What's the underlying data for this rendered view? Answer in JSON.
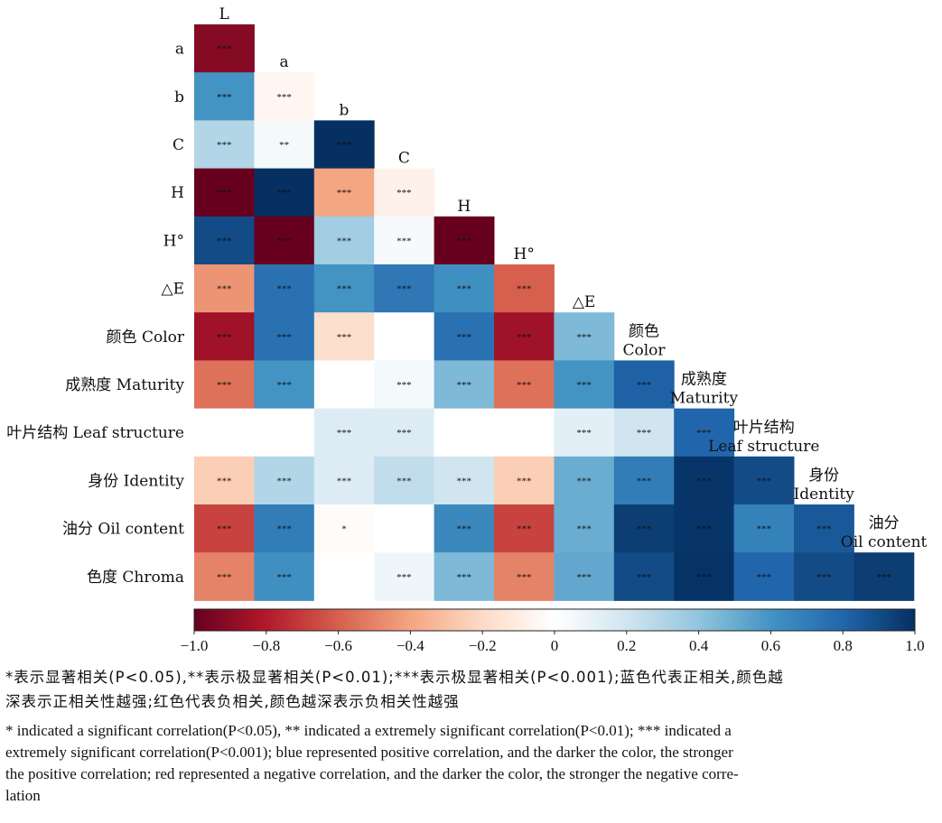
{
  "chart_data": {
    "type": "heatmap",
    "variables": [
      {
        "id": "L",
        "row_label": "",
        "col_label_lines": [
          "L"
        ]
      },
      {
        "id": "a",
        "row_label": "a",
        "col_label_lines": [
          "a"
        ]
      },
      {
        "id": "b",
        "row_label": "b",
        "col_label_lines": [
          "b"
        ]
      },
      {
        "id": "C",
        "row_label": "C",
        "col_label_lines": [
          "C"
        ]
      },
      {
        "id": "H",
        "row_label": "H",
        "col_label_lines": [
          "H"
        ]
      },
      {
        "id": "H0",
        "row_label": "H°",
        "col_label_lines": [
          "H°"
        ]
      },
      {
        "id": "dE",
        "row_label": "△E",
        "col_label_lines": [
          "△E"
        ]
      },
      {
        "id": "color",
        "row_label": "颜色 Color",
        "col_label_lines": [
          "颜色",
          "Color"
        ]
      },
      {
        "id": "maturity",
        "row_label": "成熟度 Maturity",
        "col_label_lines": [
          "成熟度",
          "Maturity"
        ]
      },
      {
        "id": "leaf",
        "row_label": "叶片结构 Leaf structure",
        "col_label_lines": [
          "叶片结构",
          "Leaf structure"
        ]
      },
      {
        "id": "identity",
        "row_label": "身份 Identity",
        "col_label_lines": [
          "身份",
          "Identity"
        ]
      },
      {
        "id": "oil",
        "row_label": "油分 Oil content",
        "col_label_lines": [
          "油分",
          "Oil content"
        ]
      },
      {
        "id": "chroma",
        "row_label": "色度 Chroma",
        "col_label_lines": []
      }
    ],
    "rows": [
      {
        "values": [
          -0.92
        ],
        "sig": [
          "***"
        ]
      },
      {
        "values": [
          0.6,
          -0.05
        ],
        "sig": [
          "***",
          "***"
        ]
      },
      {
        "values": [
          0.3,
          0.05,
          1.0
        ],
        "sig": [
          "***",
          "**",
          "***"
        ]
      },
      {
        "values": [
          -1.0,
          1.0,
          -0.4,
          -0.08
        ],
        "sig": [
          "***",
          "***",
          "***",
          "***"
        ]
      },
      {
        "values": [
          0.9,
          -1.0,
          0.35,
          0.04,
          -1.0
        ],
        "sig": [
          "***",
          "***",
          "***",
          "***",
          "***"
        ]
      },
      {
        "values": [
          -0.45,
          0.75,
          0.6,
          0.72,
          0.62,
          -0.6
        ],
        "sig": [
          "***",
          "***",
          "***",
          "***",
          "***",
          "***"
        ]
      },
      {
        "values": [
          -0.85,
          0.75,
          -0.18,
          0.0,
          0.75,
          -0.85,
          0.45
        ],
        "sig": [
          "***",
          "***",
          "***",
          "",
          "***",
          "***",
          "***"
        ]
      },
      {
        "values": [
          -0.55,
          0.6,
          0.0,
          0.05,
          0.45,
          -0.55,
          0.6,
          0.82
        ],
        "sig": [
          "***",
          "***",
          "",
          "***",
          "***",
          "***",
          "***",
          "***"
        ]
      },
      {
        "values": [
          0.0,
          0.0,
          0.15,
          0.15,
          0.0,
          0.0,
          0.12,
          0.2,
          0.8
        ],
        "sig": [
          "",
          "",
          "***",
          "***",
          "",
          "",
          "***",
          "***",
          "***"
        ]
      },
      {
        "values": [
          -0.25,
          0.3,
          0.15,
          0.25,
          0.2,
          -0.25,
          0.5,
          0.7,
          0.98,
          0.9
        ],
        "sig": [
          "***",
          "***",
          "***",
          "***",
          "***",
          "***",
          "***",
          "***",
          "***",
          "***"
        ]
      },
      {
        "values": [
          -0.68,
          0.7,
          -0.02,
          0.0,
          0.65,
          -0.68,
          0.5,
          0.95,
          0.98,
          0.68,
          0.85
        ],
        "sig": [
          "***",
          "***",
          "*",
          "",
          "***",
          "***",
          "***",
          "***",
          "***",
          "***",
          "***"
        ]
      },
      {
        "values": [
          -0.5,
          0.62,
          0.0,
          0.07,
          0.45,
          -0.5,
          0.52,
          0.9,
          0.99,
          0.8,
          0.9,
          0.95
        ],
        "sig": [
          "***",
          "***",
          "",
          "***",
          "***",
          "***",
          "***",
          "***",
          "***",
          "***",
          "***",
          "***"
        ]
      }
    ],
    "colorbar": {
      "min": -1.0,
      "max": 1.0,
      "ticks": [
        "−1.0",
        "−0.8",
        "−0.6",
        "−0.4",
        "−0.2",
        "0",
        "0.2",
        "0.4",
        "0.6",
        "0.8",
        "1.0"
      ]
    },
    "colors": {
      "neg_end": "#67001f",
      "pos_end": "#053061",
      "zero": "#ffffff"
    }
  },
  "notes": {
    "cn_line1": "*表示显著相关(P<0.05),**表示极显著相关(P<0.01);***表示极显著相关(P<0.001);蓝色代表正相关,颜色越",
    "cn_line2": "深表示正相关性越强;红色代表负相关,颜色越深表示负相关性越强",
    "en_line1": "* indicated a significant correlation(P<0.05), ** indicated a extremely significant correlation(P<0.01); *** indicated a",
    "en_line2": "extremely significant correlation(P<0.001); blue represented positive correlation, and the darker the color, the stronger",
    "en_line3": "the positive correlation; red represented a negative correlation, and the darker the color, the stronger the negative corre-",
    "en_line4": "lation"
  }
}
